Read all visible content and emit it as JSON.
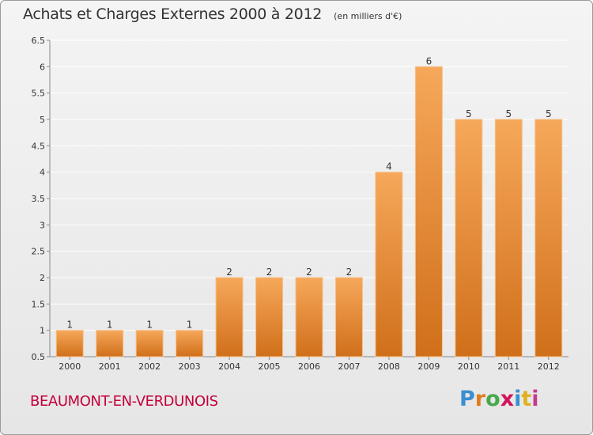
{
  "chart_data": {
    "type": "bar",
    "title": "Achats et Charges Externes 2000 à 2012",
    "subtitle": "(en milliers d'€)",
    "categories": [
      "2000",
      "2001",
      "2002",
      "2003",
      "2004",
      "2005",
      "2006",
      "2007",
      "2008",
      "2009",
      "2010",
      "2011",
      "2012"
    ],
    "values": [
      1,
      1,
      1,
      1,
      2,
      2,
      2,
      2,
      4,
      6,
      5,
      5,
      5
    ],
    "data_labels": [
      "1",
      "1",
      "1",
      "1",
      "2",
      "2",
      "2",
      "2",
      "4",
      "6",
      "5",
      "5",
      "5"
    ],
    "ylim": [
      0.5,
      6.5
    ],
    "yticks": [
      0.5,
      1,
      1.5,
      2,
      2.5,
      3,
      3.5,
      4,
      4.5,
      5,
      5.5,
      6,
      6.5
    ],
    "ytick_labels": [
      "0.5",
      "1",
      "1.5",
      "2",
      "2.5",
      "3",
      "3.5",
      "4",
      "4.5",
      "5",
      "5.5",
      "6",
      "6.5"
    ],
    "grid": true,
    "legend": "none",
    "colors": {
      "bar_light": "#f6a85a",
      "bar_dark": "#d06f1a",
      "grid": "#ffffff",
      "text": "#333333"
    }
  },
  "footer": {
    "commune": "BEAUMONT-EN-VERDUNOIS",
    "brand": "Proxiti",
    "brand_colors": [
      "#3a8fd0",
      "#e07c20",
      "#4aa84a",
      "#d2145a",
      "#3a8fd0",
      "#e0b020",
      "#c33b8f"
    ]
  }
}
